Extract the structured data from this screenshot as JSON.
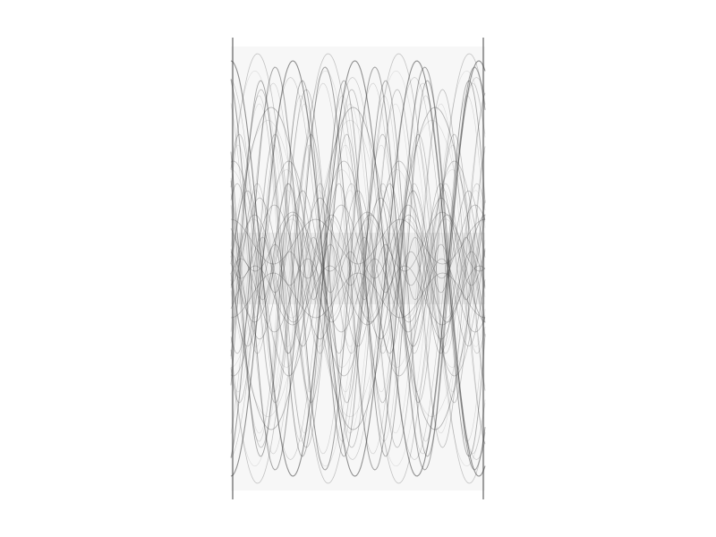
{
  "image": {
    "kind": "strange-attractor-render",
    "background_color": "#ffffff",
    "ink_color": "#3c3c3c",
    "text": []
  }
}
